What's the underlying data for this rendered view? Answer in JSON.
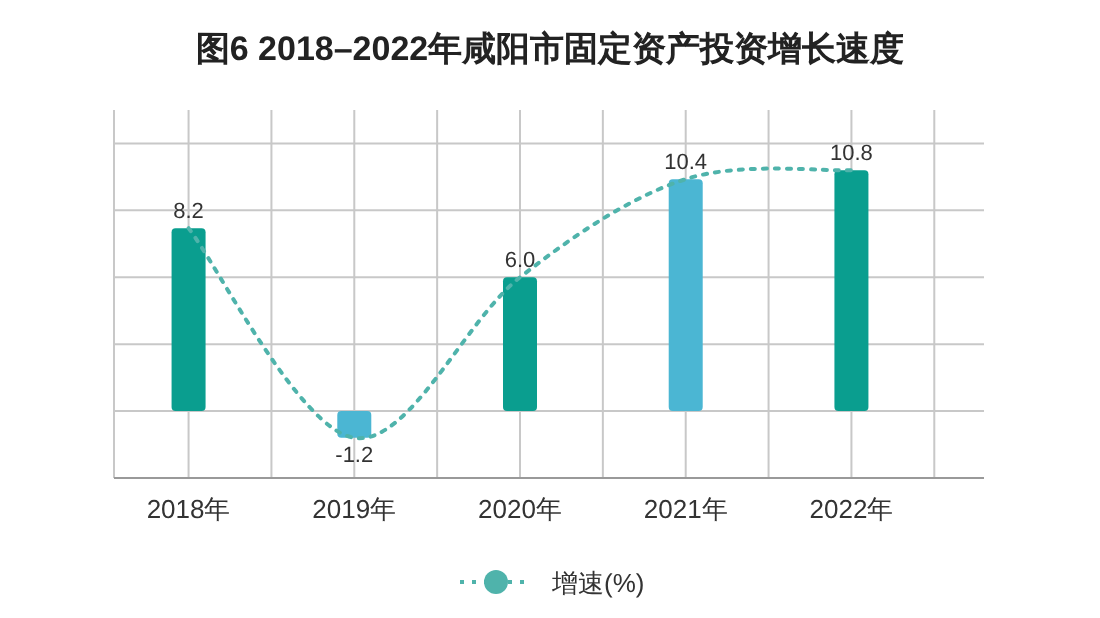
{
  "chart_data": {
    "type": "bar",
    "title": "图6  2018–2022年咸阳市固定资产投资增长速度",
    "categories": [
      "2018年",
      "2019年",
      "2020年",
      "2021年",
      "2022年"
    ],
    "series": [
      {
        "colors": [
          "#0a9e8f",
          "#4bb6d3",
          "#0a9e8f",
          "#4bb6d3",
          "#0a9e8f"
        ],
        "values": [
          8.2,
          -1.2,
          6.0,
          10.4,
          10.8
        ],
        "value_labels": [
          "8.2",
          "-1.2",
          "6.0",
          "10.4",
          "10.8"
        ]
      },
      {
        "type": "line",
        "name": "增速(%)",
        "color": "#4fb3ab",
        "line_style": "dotted",
        "values": [
          8.2,
          -1.2,
          6.0,
          10.4,
          10.8
        ]
      }
    ],
    "ylim": [
      -3,
      13.5
    ],
    "yticks": [
      {
        "value": -3,
        "label": null
      },
      {
        "value": 0,
        "label": null
      },
      {
        "value": 3,
        "label": null
      },
      {
        "value": 6,
        "label": null
      },
      {
        "value": 9,
        "label": null
      },
      {
        "value": 12,
        "label": null
      }
    ],
    "tick_labels": "x",
    "grid": true,
    "legend": "bottom"
  }
}
